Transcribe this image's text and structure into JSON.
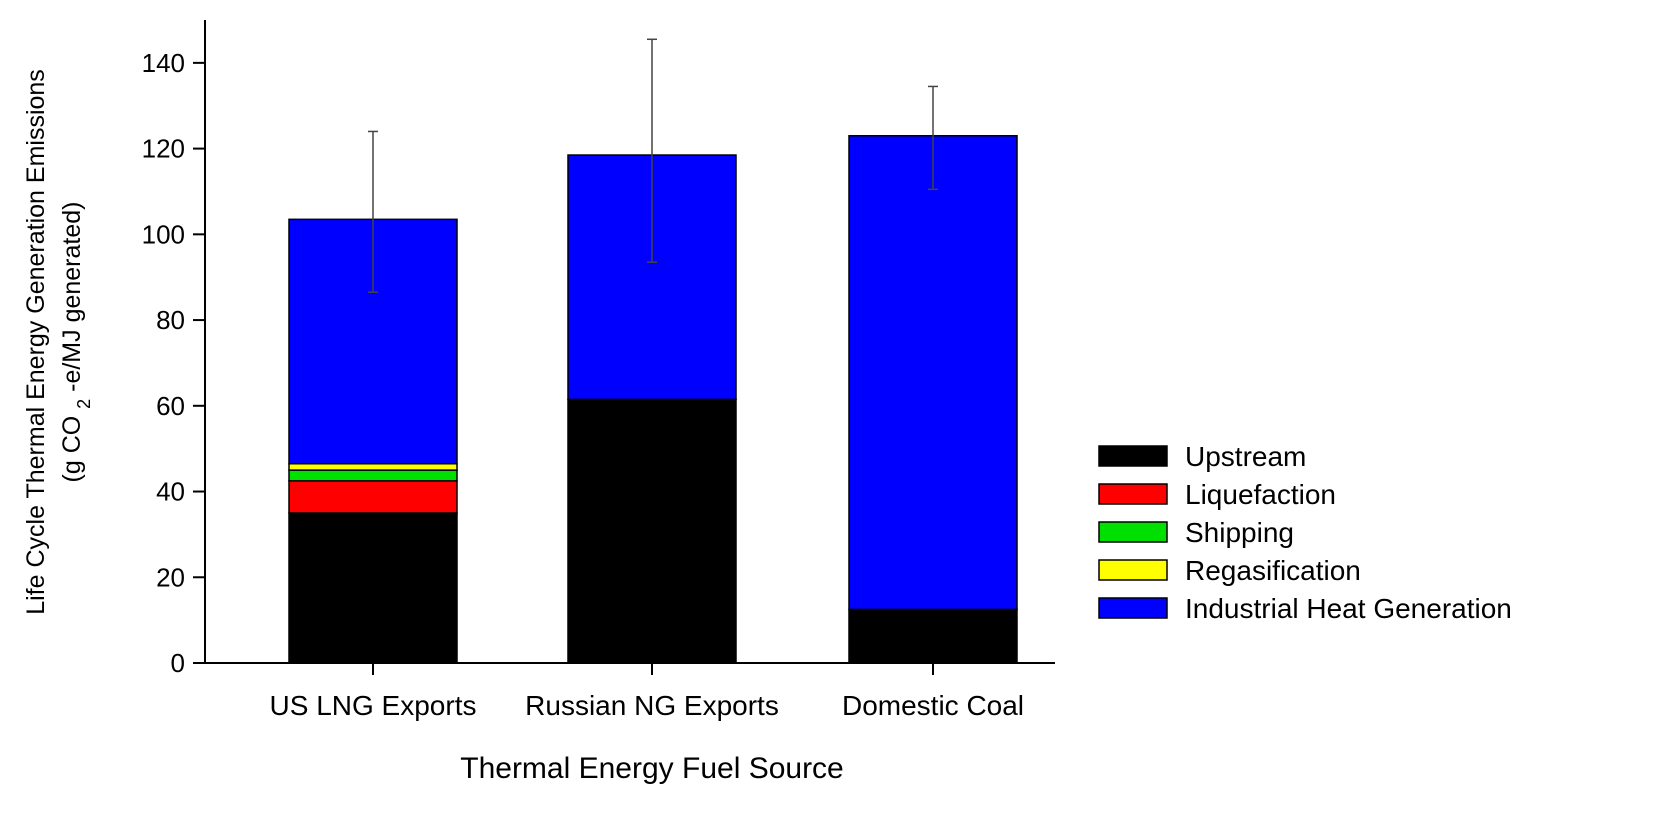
{
  "chart_data": {
    "type": "bar",
    "stacked": true,
    "title": "",
    "xlabel": "Thermal Energy Fuel Source",
    "ylabel": {
      "line1": "Life Cycle Thermal Energy Generation Emissions",
      "line2_prefix": "(g CO",
      "line2_sub": "2",
      "line2_suffix": "-e/MJ generated)"
    },
    "ylim": [
      0,
      150
    ],
    "yticks": [
      0,
      20,
      40,
      60,
      80,
      100,
      120,
      140
    ],
    "grid": false,
    "legend_position": "right",
    "categories": [
      "US LNG Exports",
      "Russian NG Exports",
      "Domestic Coal"
    ],
    "series": [
      {
        "name": "Upstream",
        "color": "#000000",
        "values": [
          35,
          61.5,
          12.5
        ]
      },
      {
        "name": "Liquefaction",
        "color": "#ff0000",
        "values": [
          7.5,
          0,
          0
        ]
      },
      {
        "name": "Shipping",
        "color": "#00e000",
        "values": [
          2.5,
          0,
          0
        ]
      },
      {
        "name": "Regasification",
        "color": "#ffff00",
        "values": [
          1.5,
          0,
          0
        ]
      },
      {
        "name": "Industrial Heat Generation",
        "color": "#0000ff",
        "values": [
          57,
          57,
          110.5
        ]
      }
    ],
    "error_bars": [
      {
        "category": "US LNG Exports",
        "center": 103.5,
        "upper": 124,
        "lower": 86.5
      },
      {
        "category": "Russian NG Exports",
        "center": 118.5,
        "upper": 145.5,
        "lower": 93.5
      },
      {
        "category": "Domestic Coal",
        "center": 123,
        "upper": 134.5,
        "lower": 110.5
      }
    ]
  }
}
